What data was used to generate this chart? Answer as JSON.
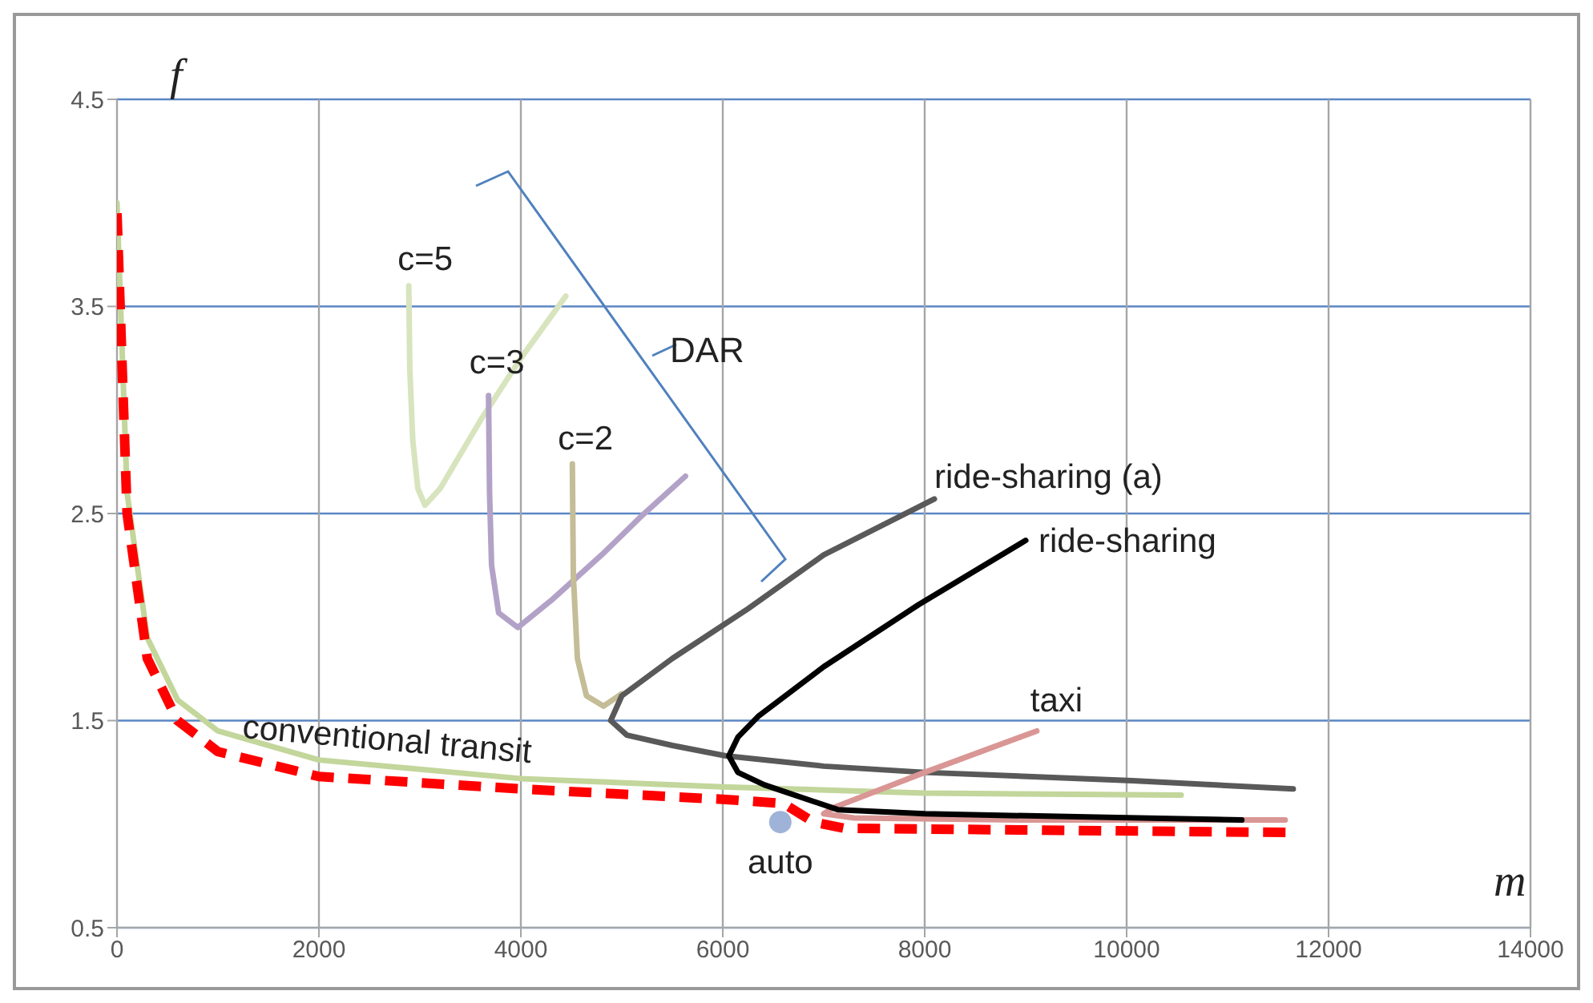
{
  "chart_data": {
    "type": "line",
    "xlabel": "m",
    "ylabel": "f",
    "annotations": [
      "DAR"
    ],
    "xlim": [
      0,
      14000
    ],
    "xticks": [
      0,
      2000,
      4000,
      6000,
      8000,
      10000,
      12000,
      14000
    ],
    "ylim": [
      0.5,
      4.5
    ],
    "yticks": [
      0.5,
      1.5,
      2.5,
      3.5,
      4.5
    ],
    "grid": true,
    "line_style": "solid",
    "series": [
      {
        "name": "conventional transit",
        "color": "#c3d69b",
        "x": [
          0,
          100,
          300,
          600,
          1000,
          2000,
          4000,
          6000,
          8000,
          10540
        ],
        "values": [
          4.0,
          2.6,
          1.9,
          1.6,
          1.45,
          1.31,
          1.22,
          1.18,
          1.15,
          1.14
        ]
      },
      {
        "color": "#ff0000",
        "line_style": "dashed",
        "x": [
          0,
          100,
          300,
          600,
          1000,
          2000,
          4000,
          6000,
          6600,
          6900,
          7200,
          11590
        ],
        "values": [
          3.95,
          2.5,
          1.8,
          1.5,
          1.35,
          1.23,
          1.17,
          1.12,
          1.1,
          1.01,
          0.98,
          0.96
        ]
      },
      {
        "name": "c=5",
        "color": "#d7e4bd",
        "x": [
          2890,
          2900,
          2930,
          2980,
          3050,
          3200,
          3600,
          4000,
          4445
        ],
        "values": [
          3.6,
          3.2,
          2.85,
          2.62,
          2.54,
          2.62,
          2.95,
          3.25,
          3.55
        ]
      },
      {
        "name": "c=3",
        "color": "#b3a2c7",
        "x": [
          3680,
          3690,
          3710,
          3780,
          3970,
          4300,
          4800,
          5200,
          5630
        ],
        "values": [
          3.07,
          2.6,
          2.25,
          2.02,
          1.95,
          2.08,
          2.3,
          2.49,
          2.68
        ]
      },
      {
        "name": "c=2",
        "color": "#c4bd97",
        "x": [
          4510,
          4520,
          4560,
          4650,
          4820,
          5000
        ],
        "values": [
          2.74,
          2.2,
          1.8,
          1.62,
          1.57,
          1.63
        ]
      },
      {
        "name": "ride-sharing (a)",
        "color": "#595959",
        "x": [
          8095,
          7000,
          6250,
          5500,
          5000,
          4890,
          5050,
          5500,
          6030,
          7000,
          8000,
          10060,
          11650
        ],
        "values": [
          2.57,
          2.3,
          2.04,
          1.8,
          1.62,
          1.5,
          1.43,
          1.38,
          1.33,
          1.28,
          1.25,
          1.21,
          1.17
        ]
      },
      {
        "name": "taxi",
        "color": "#d99694",
        "x": [
          9110,
          8000,
          7100,
          7000,
          7300,
          9000,
          11570
        ],
        "values": [
          1.45,
          1.25,
          1.08,
          1.05,
          1.03,
          1.02,
          1.02
        ]
      },
      {
        "name": "ride-sharing",
        "color": "#000000",
        "x": [
          9000,
          7940,
          7000,
          6350,
          6150,
          6060,
          6150,
          6410,
          7140,
          8000,
          11140
        ],
        "values": [
          2.37,
          2.06,
          1.76,
          1.52,
          1.42,
          1.33,
          1.25,
          1.19,
          1.07,
          1.05,
          1.02
        ]
      },
      {
        "name": "auto",
        "type": "scatter",
        "color": "#9fb3d8",
        "x": [
          6570
        ],
        "values": [
          1.01
        ]
      }
    ]
  }
}
